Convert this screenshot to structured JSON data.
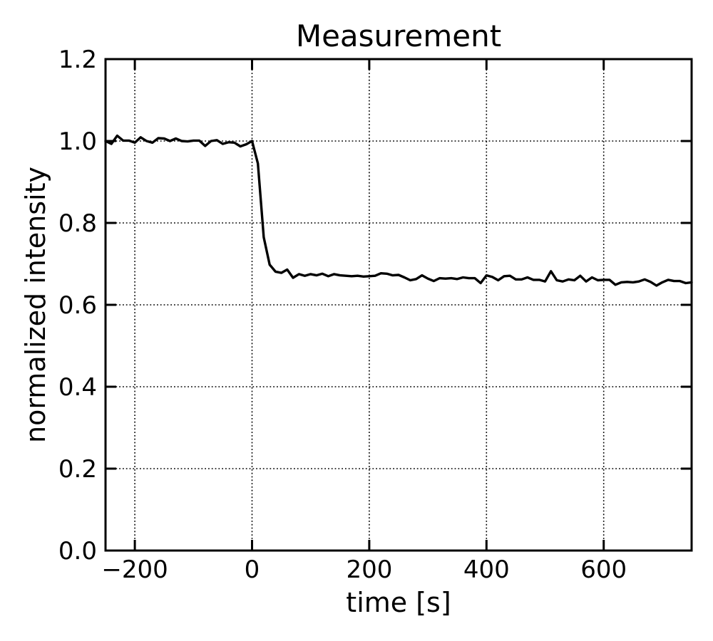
{
  "chart_data": {
    "type": "line",
    "title": "Measurement",
    "xlabel": "time [s]",
    "ylabel": "normalized intensity",
    "xlim": [
      -250,
      750
    ],
    "ylim": [
      0.0,
      1.2
    ],
    "xticks": [
      -200,
      0,
      200,
      400,
      600
    ],
    "xtick_labels": [
      "−200",
      "0",
      "200",
      "400",
      "600"
    ],
    "yticks": [
      0.0,
      0.2,
      0.4,
      0.6,
      0.8,
      1.0,
      1.2
    ],
    "ytick_labels": [
      "0.0",
      "0.2",
      "0.4",
      "0.6",
      "0.8",
      "1.0",
      "1.2"
    ],
    "grid": true,
    "line_color": "#000000",
    "series": [
      {
        "x": [
          -250,
          -240,
          -230,
          -220,
          -210,
          -200,
          -190,
          -180,
          -170,
          -160,
          -150,
          -140,
          -130,
          -120,
          -110,
          -100,
          -90,
          -80,
          -70,
          -60,
          -50,
          -40,
          -30,
          -20,
          -10,
          0,
          10,
          20,
          30,
          40,
          50,
          60,
          70,
          80,
          90,
          100,
          110,
          120,
          130,
          140,
          150,
          160,
          170,
          180,
          190,
          200,
          210,
          220,
          230,
          240,
          250,
          260,
          270,
          280,
          290,
          300,
          310,
          320,
          330,
          340,
          350,
          360,
          370,
          380,
          390,
          400,
          410,
          420,
          430,
          440,
          450,
          460,
          470,
          480,
          490,
          500,
          510,
          520,
          530,
          540,
          550,
          560,
          570,
          580,
          590,
          600,
          610,
          620,
          630,
          640,
          650,
          660,
          670,
          680,
          690,
          700,
          710,
          720,
          730,
          740,
          750
        ],
        "values": [
          1.0,
          0.993,
          1.013,
          1.001,
          1.001,
          0.996,
          1.009,
          1.0,
          0.996,
          1.007,
          1.006,
          1.0,
          1.006,
          1.0,
          0.999,
          1.001,
          1.001,
          0.988,
          1.0,
          1.002,
          0.993,
          0.997,
          0.996,
          0.987,
          0.992,
          1.0,
          0.945,
          0.765,
          0.698,
          0.681,
          0.678,
          0.686,
          0.666,
          0.675,
          0.671,
          0.675,
          0.672,
          0.676,
          0.67,
          0.675,
          0.672,
          0.671,
          0.67,
          0.671,
          0.669,
          0.67,
          0.671,
          0.677,
          0.676,
          0.672,
          0.673,
          0.667,
          0.66,
          0.663,
          0.672,
          0.664,
          0.658,
          0.665,
          0.664,
          0.665,
          0.663,
          0.667,
          0.665,
          0.665,
          0.653,
          0.672,
          0.668,
          0.66,
          0.67,
          0.671,
          0.662,
          0.662,
          0.667,
          0.661,
          0.661,
          0.657,
          0.682,
          0.66,
          0.657,
          0.662,
          0.66,
          0.671,
          0.657,
          0.667,
          0.66,
          0.661,
          0.661,
          0.649,
          0.655,
          0.656,
          0.655,
          0.657,
          0.662,
          0.656,
          0.647,
          0.655,
          0.661,
          0.658,
          0.658,
          0.653,
          0.655
        ]
      }
    ]
  }
}
